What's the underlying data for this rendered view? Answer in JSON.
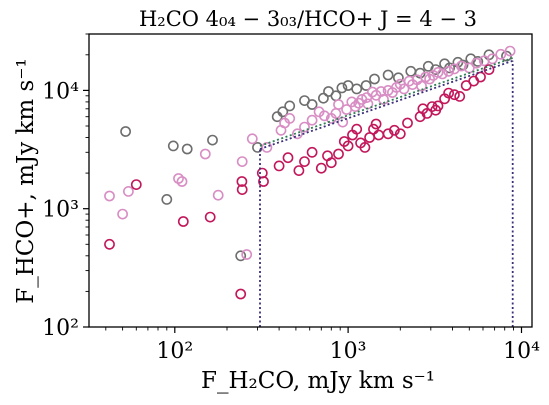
{
  "chart_data": {
    "type": "scatter",
    "title": "H₂CO 4₀₄ − 3₀₃/HCO+ J = 4 − 3",
    "xlabel": "F_H₂CO, mJy km s⁻¹",
    "ylabel": "F_HCO+, mJy km s⁻¹",
    "x_scale": "log",
    "y_scale": "log",
    "xlim": [
      32,
      11500
    ],
    "ylim": [
      100,
      30000
    ],
    "x_ticks": [
      {
        "value": 100,
        "label": "10²"
      },
      {
        "value": 1000,
        "label": "10³"
      },
      {
        "value": 10000,
        "label": "10⁴"
      }
    ],
    "y_ticks": [
      {
        "value": 100,
        "label": "10²"
      },
      {
        "value": 1000,
        "label": "10³"
      },
      {
        "value": 10000,
        "label": "10⁴"
      }
    ],
    "grid": false,
    "legend": "none",
    "series": [
      {
        "marker": "open-circle",
        "color": "#6e6e6e",
        "points": [
          [
            52,
            4500
          ],
          [
            90,
            1200
          ],
          [
            98,
            3400
          ],
          [
            118,
            3200
          ],
          [
            165,
            3800
          ],
          [
            240,
            400
          ],
          [
            300,
            3300
          ],
          [
            390,
            6000
          ],
          [
            420,
            6600
          ],
          [
            460,
            7400
          ],
          [
            560,
            8200
          ],
          [
            620,
            7600
          ],
          [
            720,
            8600
          ],
          [
            770,
            9800
          ],
          [
            850,
            9000
          ],
          [
            920,
            10500
          ],
          [
            1000,
            11000
          ],
          [
            1120,
            10300
          ],
          [
            1270,
            11000
          ],
          [
            1420,
            12500
          ],
          [
            1700,
            13500
          ],
          [
            1950,
            12800
          ],
          [
            2300,
            14500
          ],
          [
            2600,
            14000
          ],
          [
            2900,
            16000
          ],
          [
            3200,
            15000
          ],
          [
            3600,
            16800
          ],
          [
            3850,
            15500
          ],
          [
            4300,
            17300
          ],
          [
            4600,
            16400
          ],
          [
            5100,
            18500
          ],
          [
            5600,
            17600
          ],
          [
            6500,
            20000
          ],
          [
            8200,
            19500
          ]
        ]
      },
      {
        "marker": "open-circle",
        "color": "#d88ec4",
        "points": [
          [
            42,
            1280
          ],
          [
            50,
            900
          ],
          [
            54,
            1400
          ],
          [
            110,
            1700
          ],
          [
            105,
            1800
          ],
          [
            150,
            2900
          ],
          [
            178,
            1300
          ],
          [
            245,
            2500
          ],
          [
            260,
            410
          ],
          [
            280,
            3900
          ],
          [
            340,
            3300
          ],
          [
            410,
            4600
          ],
          [
            430,
            5300
          ],
          [
            460,
            5800
          ],
          [
            510,
            4300
          ],
          [
            560,
            4900
          ],
          [
            620,
            5600
          ],
          [
            680,
            6600
          ],
          [
            730,
            6100
          ],
          [
            800,
            5800
          ],
          [
            850,
            6400
          ],
          [
            880,
            7600
          ],
          [
            930,
            5400
          ],
          [
            980,
            6900
          ],
          [
            1050,
            8000
          ],
          [
            1100,
            7300
          ],
          [
            1150,
            7800
          ],
          [
            1200,
            8400
          ],
          [
            1280,
            8700
          ],
          [
            1300,
            7700
          ],
          [
            1380,
            9700
          ],
          [
            1450,
            9100
          ],
          [
            1550,
            9800
          ],
          [
            1600,
            8400
          ],
          [
            1700,
            10000
          ],
          [
            1800,
            9600
          ],
          [
            1900,
            10600
          ],
          [
            2000,
            11300
          ],
          [
            2100,
            10300
          ],
          [
            2250,
            12000
          ],
          [
            2350,
            11200
          ],
          [
            2500,
            12300
          ],
          [
            2650,
            10900
          ],
          [
            2800,
            13000
          ],
          [
            2950,
            12500
          ],
          [
            3100,
            13400
          ],
          [
            3300,
            14200
          ],
          [
            3500,
            13800
          ],
          [
            3800,
            14500
          ],
          [
            4100,
            15200
          ],
          [
            4500,
            16100
          ],
          [
            5000,
            15500
          ],
          [
            5500,
            17000
          ],
          [
            6100,
            17800
          ],
          [
            6800,
            18500
          ],
          [
            7600,
            20200
          ],
          [
            8600,
            21500
          ]
        ]
      },
      {
        "marker": "open-circle",
        "color": "#c2185b",
        "points": [
          [
            42,
            500
          ],
          [
            60,
            1600
          ],
          [
            112,
            780
          ],
          [
            160,
            850
          ],
          [
            244,
            1700
          ],
          [
            245,
            1450
          ],
          [
            240,
            190
          ],
          [
            320,
            2000
          ],
          [
            325,
            1700
          ],
          [
            400,
            2300
          ],
          [
            450,
            2700
          ],
          [
            520,
            2100
          ],
          [
            560,
            2500
          ],
          [
            620,
            3000
          ],
          [
            700,
            2200
          ],
          [
            760,
            2800
          ],
          [
            800,
            2450
          ],
          [
            880,
            2900
          ],
          [
            950,
            3700
          ],
          [
            1000,
            3400
          ],
          [
            1060,
            4200
          ],
          [
            1120,
            4700
          ],
          [
            1180,
            3600
          ],
          [
            1250,
            3300
          ],
          [
            1330,
            4000
          ],
          [
            1400,
            4700
          ],
          [
            1450,
            5200
          ],
          [
            1500,
            4200
          ],
          [
            1700,
            4300
          ],
          [
            1850,
            4600
          ],
          [
            2000,
            4300
          ],
          [
            2200,
            5300
          ],
          [
            2600,
            6000
          ],
          [
            2700,
            7000
          ],
          [
            2850,
            6400
          ],
          [
            3050,
            7300
          ],
          [
            3200,
            6800
          ],
          [
            3300,
            7400
          ],
          [
            3600,
            8500
          ],
          [
            3800,
            9500
          ],
          [
            4100,
            9200
          ],
          [
            4400,
            8900
          ],
          [
            4800,
            11000
          ],
          [
            5300,
            12000
          ],
          [
            5800,
            13000
          ],
          [
            6500,
            15000
          ]
        ]
      }
    ],
    "reference_lines": [
      {
        "style": "dotted",
        "color": "#3b2f7a",
        "points": [
          [
            310,
            100
          ],
          [
            310,
            3200
          ]
        ]
      },
      {
        "style": "dotted",
        "color": "#3b2f7a",
        "points": [
          [
            8900,
            100
          ],
          [
            8900,
            17800
          ]
        ]
      },
      {
        "style": "dotted",
        "color": "#3b2f7a",
        "points": [
          [
            310,
            3200
          ],
          [
            8900,
            17800
          ]
        ]
      },
      {
        "style": "dotted",
        "color": "#2e7d55",
        "points": [
          [
            310,
            3400
          ],
          [
            8900,
            18800
          ]
        ]
      }
    ]
  }
}
